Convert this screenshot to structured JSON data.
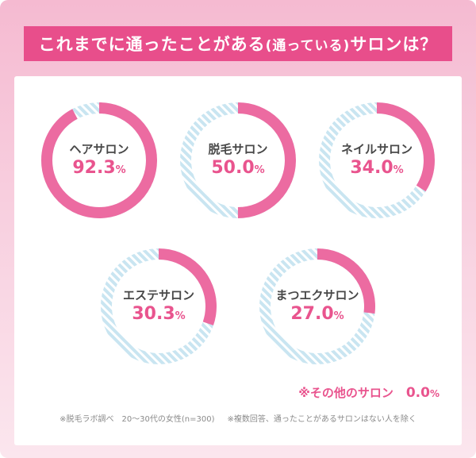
{
  "title": {
    "main": "これまでに通ったことがある",
    "paren": "(通っている)",
    "tail": "サロンは？"
  },
  "chart_data": {
    "type": "donut",
    "unit": "%",
    "legend_position": "center",
    "charts": [
      {
        "label": "ヘアサロン",
        "value": 92.3,
        "display": "92.3"
      },
      {
        "label": "脱毛サロン",
        "value": 50.0,
        "display": "50.0"
      },
      {
        "label": "ネイルサロン",
        "value": 34.0,
        "display": "34.0"
      },
      {
        "label": "エステサロン",
        "value": 30.3,
        "display": "30.3"
      },
      {
        "label": "まつエクサロン",
        "value": 27.0,
        "display": "27.0"
      }
    ],
    "colors": {
      "arc_pink": "#ec6ba1",
      "stripe_blue": "#c9e5f1",
      "value_text": "#e9548e",
      "title_bg": "#e84e8b"
    }
  },
  "other_note": {
    "label": "※その他のサロン",
    "display": "0.0",
    "unit": "%"
  },
  "footnote": {
    "left": "※脱毛ラボ調べ　20～30代の女性(n=300)",
    "right": "※複数回答、通ったことがあるサロンはない人を除く"
  }
}
